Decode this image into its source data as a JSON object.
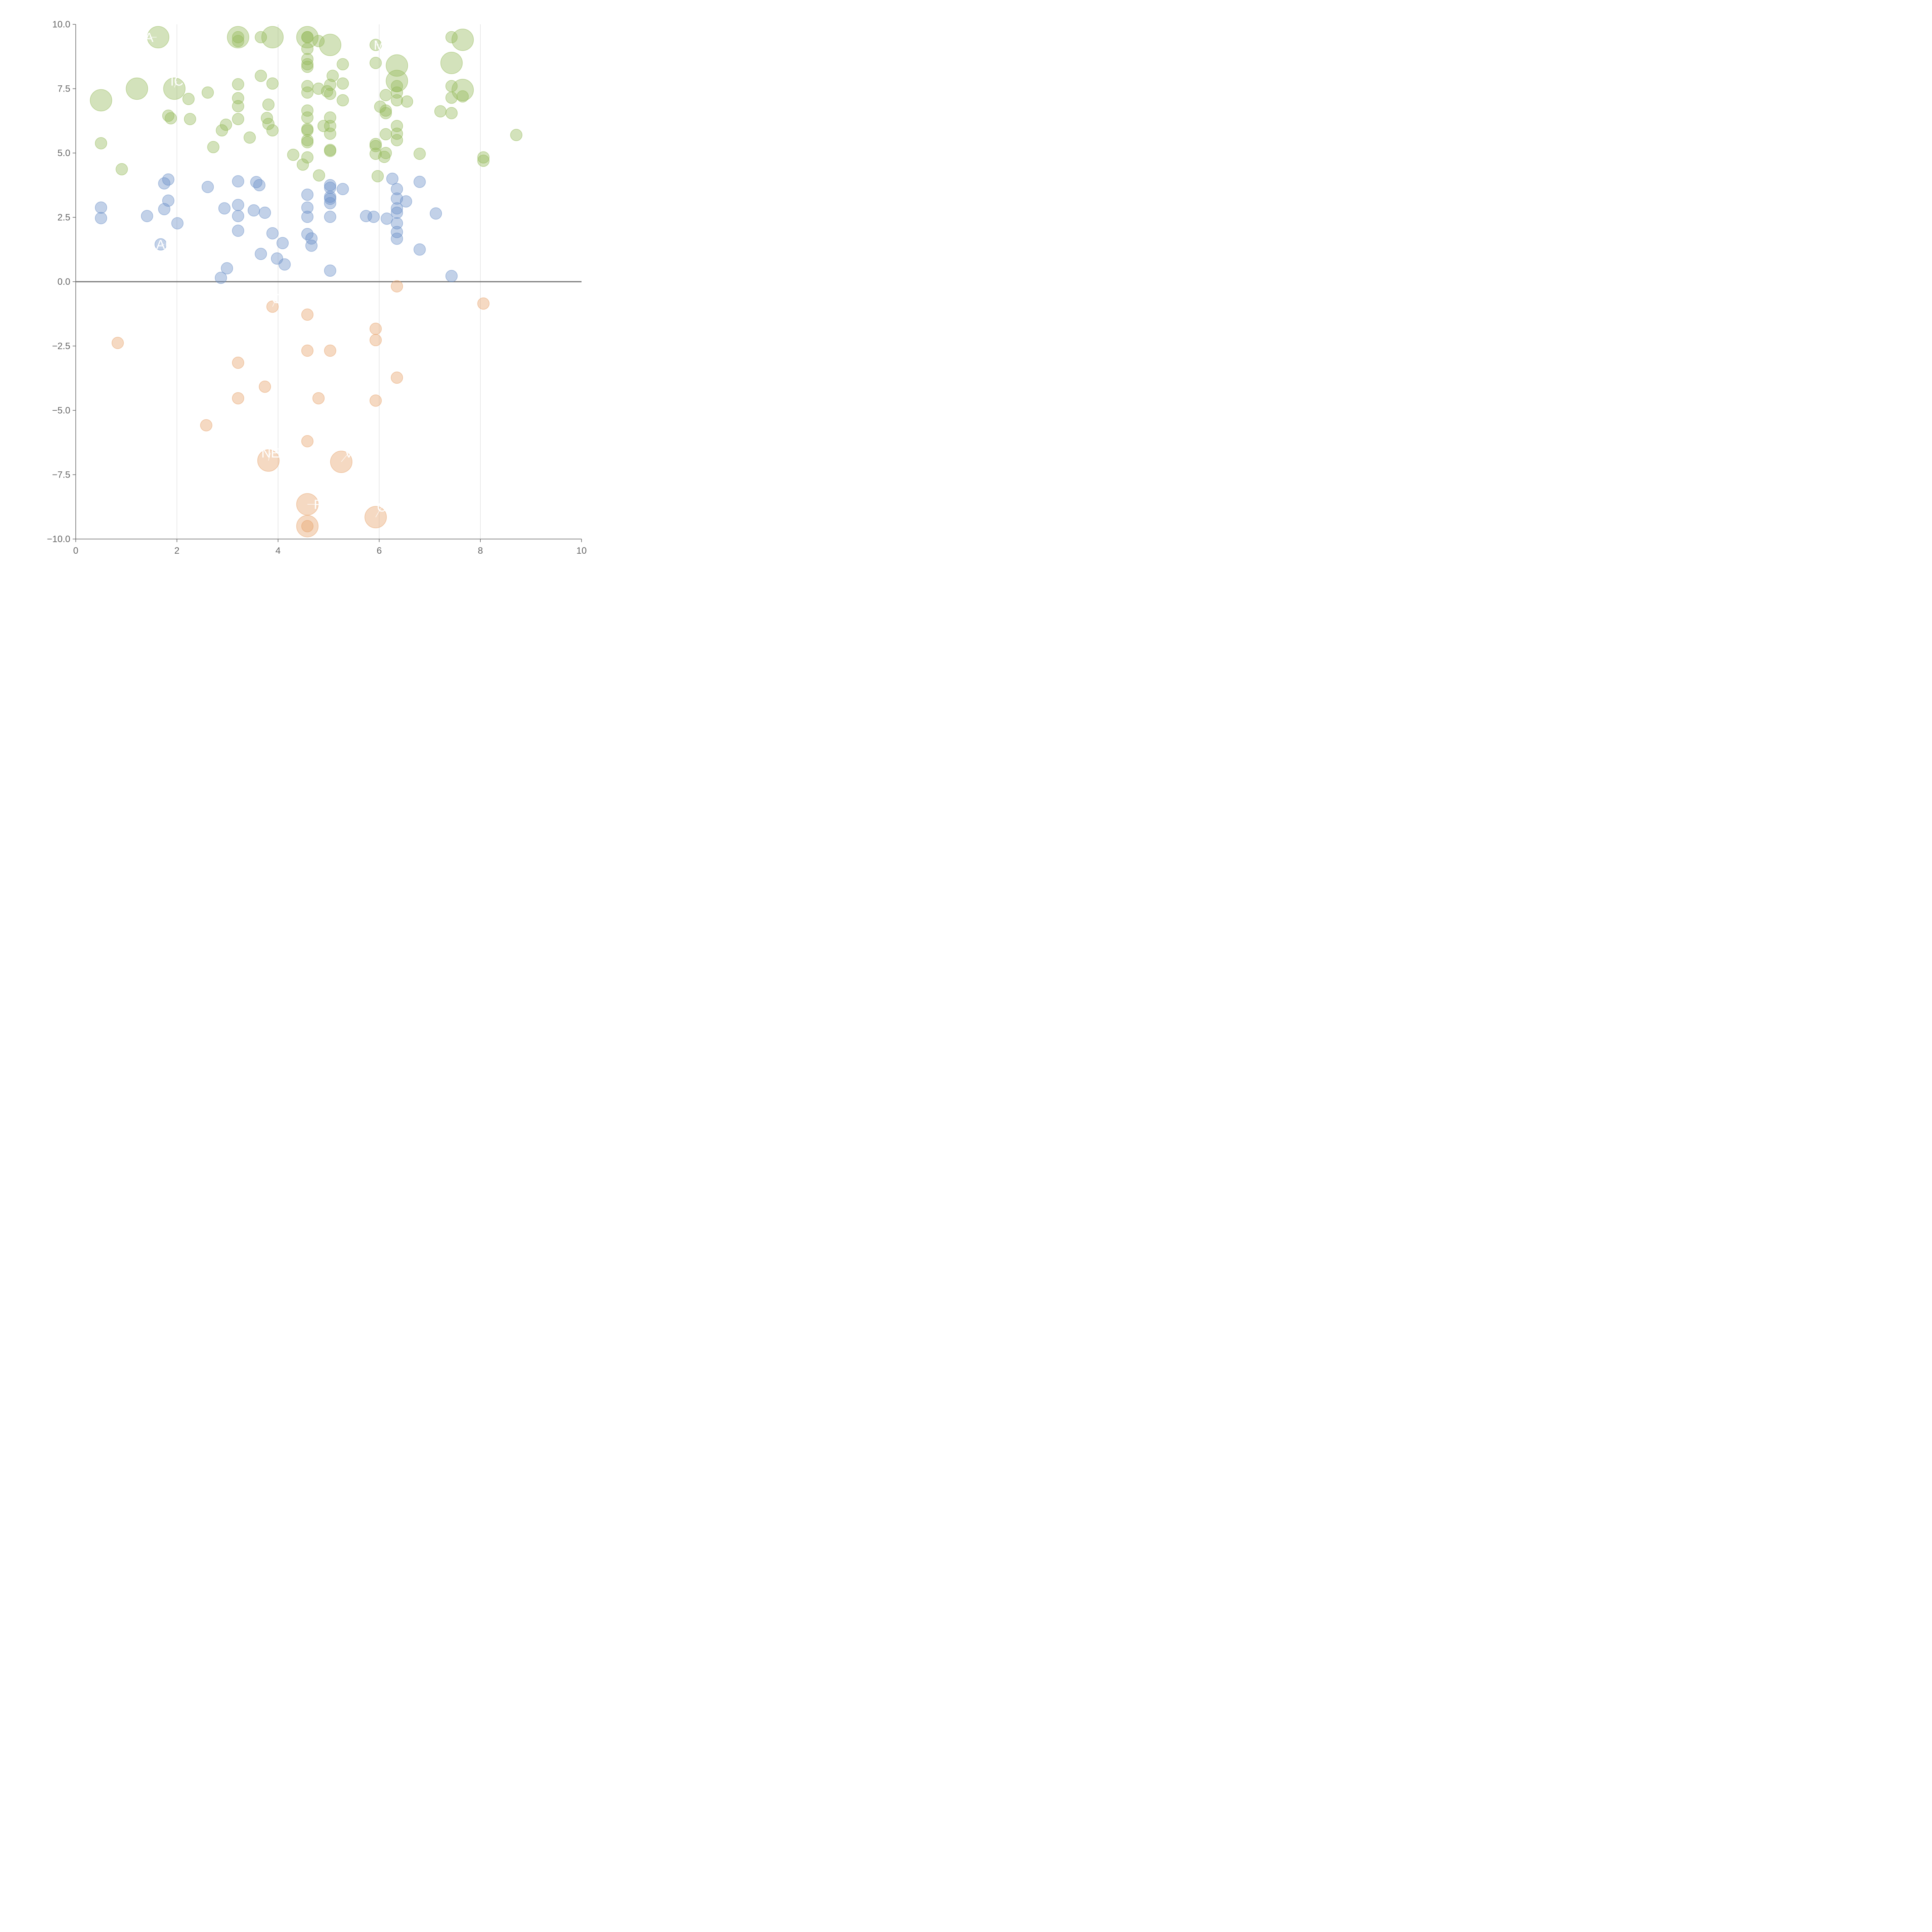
{
  "chart_data": {
    "type": "scatter",
    "title": "",
    "xlabel": "",
    "ylabel": "",
    "xlim": [
      0,
      10
    ],
    "ylim": [
      -10,
      10
    ],
    "x_ticks": [
      {
        "value": 0,
        "label": "0"
      },
      {
        "value": 2,
        "label": "2"
      },
      {
        "value": 4,
        "label": "4"
      },
      {
        "value": 6,
        "label": "6"
      },
      {
        "value": 8,
        "label": "8"
      },
      {
        "value": 10,
        "label": "10"
      }
    ],
    "y_ticks": [
      {
        "value": 10,
        "label": "10.0"
      },
      {
        "value": 7.5,
        "label": "7.5"
      },
      {
        "value": 5,
        "label": "5.0"
      },
      {
        "value": 2.5,
        "label": "2.5"
      },
      {
        "value": 0,
        "label": "0.0"
      },
      {
        "value": -2.5,
        "label": "−2.5"
      },
      {
        "value": -5,
        "label": "−5.0"
      },
      {
        "value": -7.5,
        "label": "−7.5"
      },
      {
        "value": -10,
        "label": "−10.0"
      }
    ],
    "vertical_gridlines": [
      2,
      4,
      6,
      8
    ],
    "zero_line": 0,
    "colors": {
      "green": "#97bb5c",
      "blue": "#6e91c8",
      "orange": "#e8a46d",
      "axis": "#666666",
      "grid": "#dddddd",
      "zero": "#777777"
    },
    "series": [
      {
        "color_key": "green",
        "points": [
          [
            1.63,
            9.5,
            "l"
          ],
          [
            3.21,
            9.5,
            "l"
          ],
          [
            3.89,
            9.5,
            "l"
          ],
          [
            4.58,
            9.5,
            "l"
          ],
          [
            5.03,
            9.2,
            "l"
          ],
          [
            7.65,
            9.4,
            "l"
          ],
          [
            7.43,
            8.5,
            "l"
          ],
          [
            6.35,
            8.4,
            "l"
          ],
          [
            6.35,
            7.8,
            "l"
          ],
          [
            7.65,
            7.45,
            "l"
          ],
          [
            1.95,
            7.5,
            "l"
          ],
          [
            1.21,
            7.5,
            "l"
          ],
          [
            0.5,
            7.05,
            "l"
          ],
          [
            3.21,
            9.5,
            "s"
          ],
          [
            3.21,
            9.35,
            "s"
          ],
          [
            3.66,
            9.5,
            "s"
          ],
          [
            4.58,
            9.5,
            "s"
          ],
          [
            4.58,
            9.5,
            "s"
          ],
          [
            4.8,
            9.35,
            "s"
          ],
          [
            4.58,
            9.05,
            "s"
          ],
          [
            7.43,
            9.5,
            "s"
          ],
          [
            5.93,
            9.2,
            "s"
          ],
          [
            4.58,
            8.65,
            "s"
          ],
          [
            4.58,
            8.45,
            "s"
          ],
          [
            4.58,
            8.35,
            "s"
          ],
          [
            5.28,
            8.45,
            "s"
          ],
          [
            5.93,
            8.5,
            "s"
          ],
          [
            3.66,
            8.0,
            "s"
          ],
          [
            5.08,
            8.0,
            "s"
          ],
          [
            3.89,
            7.7,
            "s"
          ],
          [
            3.21,
            7.67,
            "s"
          ],
          [
            5.03,
            7.65,
            "s"
          ],
          [
            5.28,
            7.7,
            "s"
          ],
          [
            4.58,
            7.6,
            "s"
          ],
          [
            4.8,
            7.5,
            "s"
          ],
          [
            7.43,
            7.6,
            "s"
          ],
          [
            6.35,
            7.6,
            "s"
          ],
          [
            2.61,
            7.35,
            "s"
          ],
          [
            4.58,
            7.35,
            "s"
          ],
          [
            4.97,
            7.4,
            "s"
          ],
          [
            5.03,
            7.3,
            "s"
          ],
          [
            6.35,
            7.35,
            "s"
          ],
          [
            3.21,
            7.13,
            "s"
          ],
          [
            2.23,
            7.1,
            "s"
          ],
          [
            5.28,
            7.05,
            "s"
          ],
          [
            6.13,
            7.25,
            "s"
          ],
          [
            7.43,
            7.15,
            "s"
          ],
          [
            7.65,
            7.2,
            "s"
          ],
          [
            6.35,
            7.05,
            "s"
          ],
          [
            6.55,
            7.0,
            "s"
          ],
          [
            3.81,
            6.88,
            "s"
          ],
          [
            3.21,
            6.82,
            "s"
          ],
          [
            6.02,
            6.8,
            "s"
          ],
          [
            6.13,
            6.65,
            "s"
          ],
          [
            4.58,
            6.65,
            "s"
          ],
          [
            7.21,
            6.62,
            "s"
          ],
          [
            6.13,
            6.55,
            "s"
          ],
          [
            7.43,
            6.55,
            "s"
          ],
          [
            1.83,
            6.45,
            "s"
          ],
          [
            1.88,
            6.35,
            "s"
          ],
          [
            2.26,
            6.32,
            "s"
          ],
          [
            3.21,
            6.32,
            "s"
          ],
          [
            3.78,
            6.36,
            "s"
          ],
          [
            4.58,
            6.38,
            "s"
          ],
          [
            5.03,
            6.38,
            "s"
          ],
          [
            3.81,
            6.13,
            "s"
          ],
          [
            2.97,
            6.1,
            "s"
          ],
          [
            4.9,
            6.05,
            "s"
          ],
          [
            5.03,
            6.05,
            "s"
          ],
          [
            6.35,
            6.05,
            "s"
          ],
          [
            3.89,
            5.88,
            "s"
          ],
          [
            2.89,
            5.88,
            "s"
          ],
          [
            4.58,
            5.93,
            "s"
          ],
          [
            4.58,
            5.88,
            "s"
          ],
          [
            5.03,
            5.75,
            "s"
          ],
          [
            6.13,
            5.73,
            "s"
          ],
          [
            6.35,
            5.75,
            "s"
          ],
          [
            3.44,
            5.6,
            "s"
          ],
          [
            8.71,
            5.7,
            "s"
          ],
          [
            4.58,
            5.5,
            "s"
          ],
          [
            4.58,
            5.42,
            "s"
          ],
          [
            6.35,
            5.5,
            "s"
          ],
          [
            0.5,
            5.38,
            "s"
          ],
          [
            5.93,
            5.35,
            "s"
          ],
          [
            5.93,
            5.27,
            "s"
          ],
          [
            2.72,
            5.23,
            "s"
          ],
          [
            5.03,
            5.12,
            "s"
          ],
          [
            5.03,
            5.08,
            "s"
          ],
          [
            4.3,
            4.93,
            "s"
          ],
          [
            5.93,
            4.97,
            "s"
          ],
          [
            6.13,
            5.0,
            "s"
          ],
          [
            6.8,
            4.97,
            "s"
          ],
          [
            6.1,
            4.85,
            "s"
          ],
          [
            4.58,
            4.83,
            "s"
          ],
          [
            8.06,
            4.83,
            "s"
          ],
          [
            8.06,
            4.7,
            "s"
          ],
          [
            4.49,
            4.55,
            "s"
          ],
          [
            0.91,
            4.37,
            "s"
          ],
          [
            4.81,
            4.13,
            "s"
          ],
          [
            5.97,
            4.1,
            "s"
          ]
        ]
      },
      {
        "color_key": "blue",
        "points": [
          [
            1.83,
            3.97,
            "s"
          ],
          [
            1.75,
            3.82,
            "s"
          ],
          [
            3.21,
            3.9,
            "s"
          ],
          [
            3.57,
            3.87,
            "s"
          ],
          [
            3.63,
            3.75,
            "s"
          ],
          [
            6.26,
            4.0,
            "s"
          ],
          [
            6.8,
            3.88,
            "s"
          ],
          [
            2.61,
            3.68,
            "s"
          ],
          [
            5.03,
            3.75,
            "s"
          ],
          [
            5.03,
            3.65,
            "s"
          ],
          [
            5.28,
            3.6,
            "s"
          ],
          [
            6.35,
            3.6,
            "s"
          ],
          [
            4.58,
            3.38,
            "s"
          ],
          [
            5.03,
            3.3,
            "s"
          ],
          [
            5.03,
            3.22,
            "s"
          ],
          [
            6.35,
            3.23,
            "s"
          ],
          [
            1.83,
            3.15,
            "s"
          ],
          [
            6.53,
            3.12,
            "s"
          ],
          [
            5.03,
            3.05,
            "s"
          ],
          [
            3.21,
            2.98,
            "s"
          ],
          [
            0.5,
            2.88,
            "s"
          ],
          [
            4.58,
            2.88,
            "s"
          ],
          [
            2.94,
            2.85,
            "s"
          ],
          [
            1.75,
            2.82,
            "s"
          ],
          [
            6.35,
            2.85,
            "s"
          ],
          [
            3.52,
            2.77,
            "s"
          ],
          [
            3.74,
            2.68,
            "s"
          ],
          [
            6.35,
            2.68,
            "s"
          ],
          [
            7.12,
            2.65,
            "s"
          ],
          [
            1.41,
            2.55,
            "s"
          ],
          [
            3.21,
            2.55,
            "s"
          ],
          [
            4.58,
            2.52,
            "s"
          ],
          [
            5.03,
            2.52,
            "s"
          ],
          [
            5.74,
            2.55,
            "s"
          ],
          [
            5.89,
            2.52,
            "s"
          ],
          [
            0.5,
            2.47,
            "s"
          ],
          [
            6.15,
            2.45,
            "s"
          ],
          [
            2.01,
            2.27,
            "s"
          ],
          [
            6.35,
            2.27,
            "s"
          ],
          [
            3.21,
            1.98,
            "s"
          ],
          [
            6.35,
            1.93,
            "s"
          ],
          [
            3.89,
            1.88,
            "s"
          ],
          [
            4.58,
            1.85,
            "s"
          ],
          [
            4.66,
            1.68,
            "s"
          ],
          [
            6.35,
            1.67,
            "s"
          ],
          [
            4.09,
            1.5,
            "s"
          ],
          [
            1.68,
            1.45,
            "s"
          ],
          [
            4.66,
            1.4,
            "s"
          ],
          [
            6.8,
            1.25,
            "s"
          ],
          [
            3.66,
            1.08,
            "s"
          ],
          [
            3.98,
            0.9,
            "s"
          ],
          [
            4.13,
            0.67,
            "s"
          ],
          [
            2.99,
            0.52,
            "s"
          ],
          [
            5.03,
            0.43,
            "s"
          ],
          [
            7.43,
            0.22,
            "s"
          ],
          [
            2.87,
            0.15,
            "s"
          ]
        ]
      },
      {
        "color_key": "orange",
        "points": [
          [
            6.35,
            -0.18,
            "s"
          ],
          [
            8.06,
            -0.85,
            "s"
          ],
          [
            3.89,
            -0.97,
            "s"
          ],
          [
            4.58,
            -1.28,
            "s"
          ],
          [
            5.93,
            -1.83,
            "s"
          ],
          [
            5.93,
            -2.27,
            "s"
          ],
          [
            0.83,
            -2.38,
            "s"
          ],
          [
            4.58,
            -2.68,
            "s"
          ],
          [
            5.03,
            -2.68,
            "s"
          ],
          [
            3.21,
            -3.15,
            "s"
          ],
          [
            6.35,
            -3.73,
            "s"
          ],
          [
            3.74,
            -4.08,
            "s"
          ],
          [
            3.21,
            -4.53,
            "s"
          ],
          [
            4.8,
            -4.53,
            "s"
          ],
          [
            5.93,
            -4.62,
            "s"
          ],
          [
            2.58,
            -5.58,
            "s"
          ],
          [
            4.58,
            -6.2,
            "s"
          ],
          [
            3.81,
            -6.95,
            "l"
          ],
          [
            5.25,
            -7.0,
            "l"
          ],
          [
            4.58,
            -8.65,
            "l"
          ],
          [
            5.93,
            -9.15,
            "l"
          ],
          [
            4.58,
            -9.5,
            "l"
          ],
          [
            4.58,
            -9.5,
            "s"
          ]
        ]
      }
    ],
    "annotations": [
      {
        "text": "A",
        "x": 1.45,
        "y": 9.5,
        "px": 1.6,
        "py": 9.5
      },
      {
        "text": "IC",
        "x": 2.0,
        "y": 7.8,
        "px": 1.95,
        "py": 7.55
      },
      {
        "text": "M",
        "x": 6.0,
        "y": 9.2,
        "px": 5.93,
        "py": 9.2
      },
      {
        "text": "AL",
        "x": 1.75,
        "y": 1.45,
        "px": 1.68,
        "py": 1.45
      },
      {
        "text": "NE",
        "x": 3.85,
        "y": -6.65,
        "px": 3.81,
        "py": -6.95
      },
      {
        "text": "V",
        "x": 5.4,
        "y": -6.65,
        "px": 5.25,
        "py": -7.0
      },
      {
        "text": "R",
        "x": 4.8,
        "y": -8.65,
        "px": 4.58,
        "py": -8.65
      },
      {
        "text": "C",
        "x": 6.05,
        "y": -8.75,
        "px": 5.93,
        "py": -9.15
      },
      {
        "text": "C",
        "x": 3.97,
        "y": -0.65,
        "px": 3.89,
        "py": -0.97
      }
    ]
  }
}
